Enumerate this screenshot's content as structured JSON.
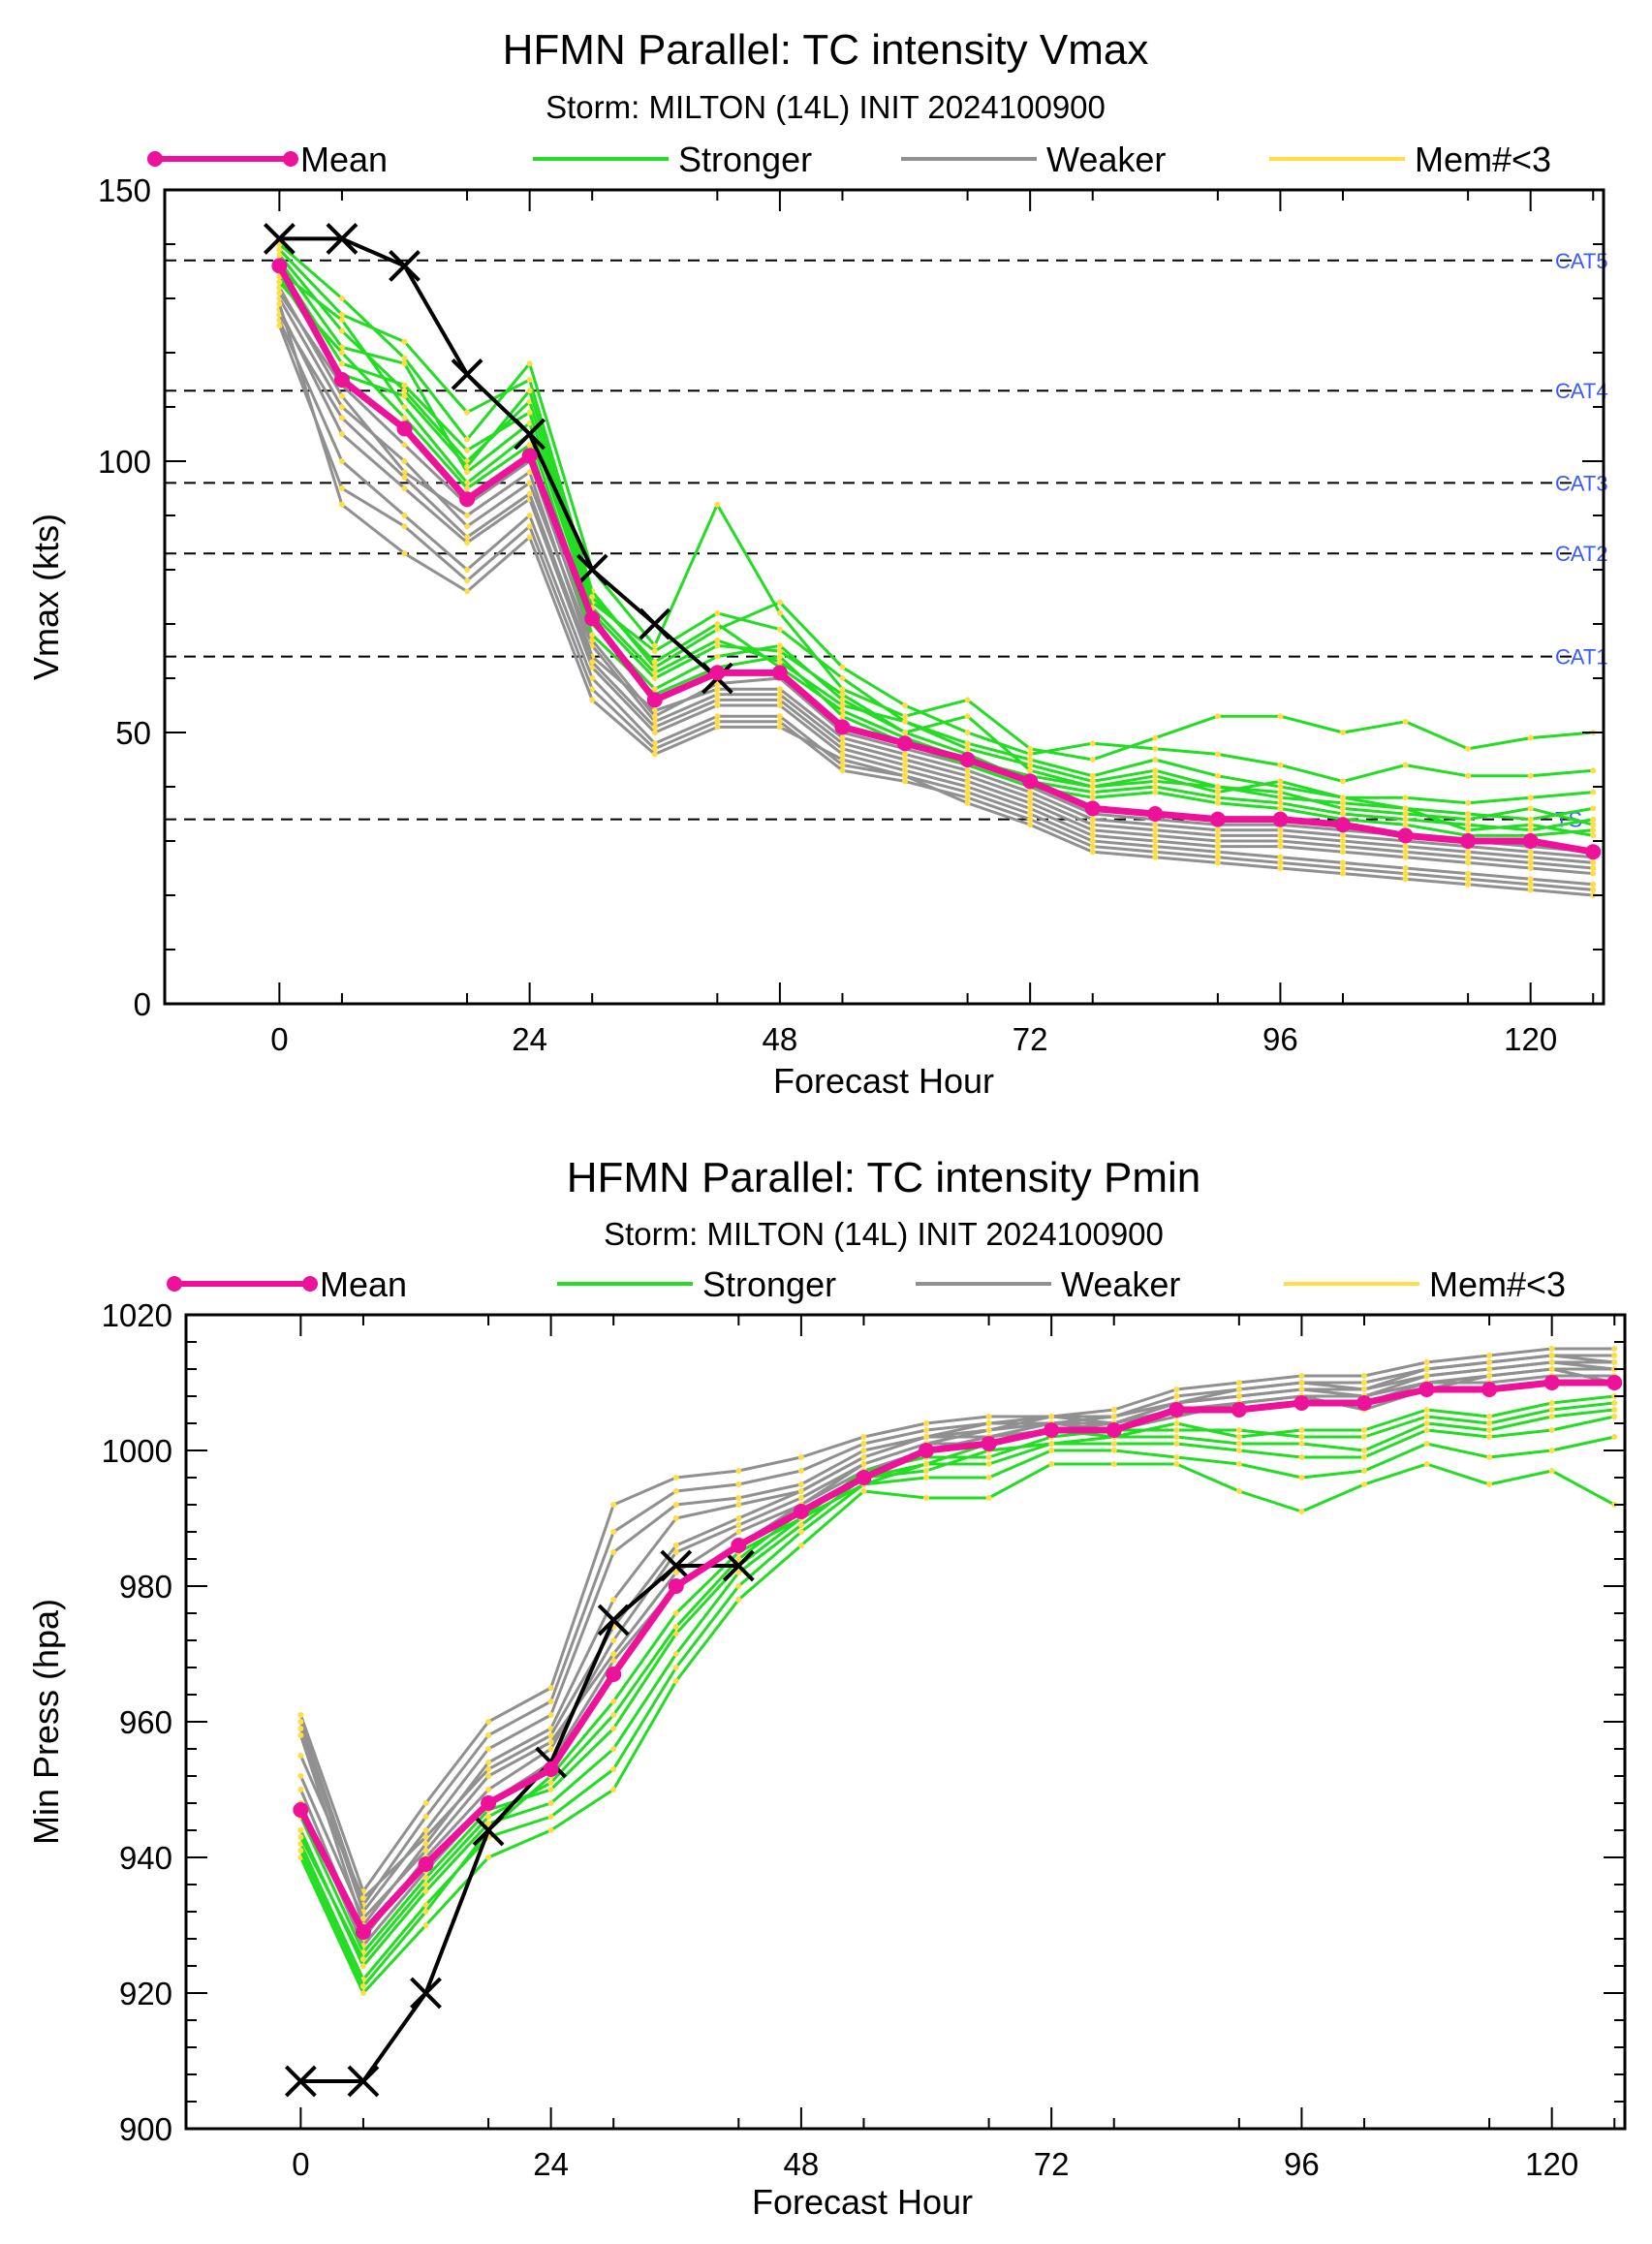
{
  "chart_data": [
    {
      "type": "line",
      "title": "HFMN Parallel: TC intensity Vmax",
      "subtitle": "Storm: MILTON (14L) INIT 2024100900",
      "xlabel": "Forecast Hour",
      "ylabel": "Vmax (kts)",
      "xlim": [
        -11,
        127
      ],
      "ylim": [
        0,
        150
      ],
      "xticks": [
        0,
        24,
        48,
        72,
        96,
        120
      ],
      "yticks": [
        0,
        50,
        100,
        150
      ],
      "grid": false,
      "legend_position": "top",
      "legend": [
        {
          "label": "Mean",
          "color": "#ee1199",
          "marker": "dot"
        },
        {
          "label": "Stronger",
          "color": "#22dd22"
        },
        {
          "label": "Weaker",
          "color": "#909090"
        },
        {
          "label": "Mem#<3",
          "color": "#ffdd44"
        }
      ],
      "thresholds": [
        {
          "label": "CAT5",
          "value": 137
        },
        {
          "label": "CAT4",
          "value": 113
        },
        {
          "label": "CAT3",
          "value": 96
        },
        {
          "label": "CAT2",
          "value": 83
        },
        {
          "label": "CAT1",
          "value": 64
        },
        {
          "label": "TS",
          "value": 34
        }
      ],
      "x": [
        0,
        6,
        12,
        18,
        24,
        30,
        36,
        42,
        48,
        54,
        60,
        66,
        72,
        78,
        84,
        90,
        96,
        102,
        108,
        114,
        120,
        126
      ],
      "series": [
        {
          "name": "Mean",
          "color": "#ee1199",
          "values": [
            136,
            115,
            106,
            93,
            101,
            71,
            56,
            61,
            61,
            51,
            48,
            45,
            41,
            36,
            35,
            34,
            34,
            33,
            31,
            30,
            30,
            28
          ]
        },
        {
          "name": "Observed",
          "color": "#000000",
          "values": [
            141,
            141,
            136,
            116,
            105,
            80,
            70,
            60,
            null,
            null,
            null,
            null,
            null,
            null,
            null,
            null,
            null,
            null,
            null,
            null,
            null,
            null
          ]
        }
      ],
      "ensemble": {
        "stronger": [
          [
            140,
            130,
            119,
            104,
            118,
            80,
            66,
            92,
            72,
            58,
            53,
            56,
            47,
            45,
            49,
            53,
            53,
            50,
            52,
            47,
            49,
            50
          ],
          [
            139,
            127,
            122,
            109,
            115,
            76,
            62,
            69,
            74,
            62,
            55,
            50,
            46,
            48,
            47,
            46,
            44,
            41,
            44,
            42,
            42,
            43
          ],
          [
            138,
            124,
            113,
            100,
            111,
            74,
            65,
            72,
            69,
            60,
            52,
            48,
            45,
            42,
            45,
            42,
            40,
            38,
            38,
            37,
            38,
            39
          ],
          [
            137,
            121,
            118,
            98,
            107,
            72,
            60,
            66,
            65,
            57,
            50,
            53,
            43,
            40,
            41,
            40,
            38,
            37,
            36,
            35,
            34,
            36
          ],
          [
            136,
            118,
            114,
            102,
            109,
            73,
            61,
            67,
            63,
            55,
            52,
            47,
            44,
            41,
            43,
            40,
            39,
            36,
            35,
            34,
            36,
            33
          ],
          [
            135,
            126,
            110,
            96,
            105,
            70,
            58,
            64,
            66,
            56,
            50,
            46,
            41,
            39,
            40,
            38,
            37,
            35,
            34,
            33,
            32,
            34
          ],
          [
            134,
            116,
            112,
            99,
            113,
            75,
            63,
            70,
            62,
            54,
            49,
            45,
            42,
            40,
            42,
            39,
            41,
            38,
            36,
            32,
            33,
            31
          ],
          [
            133,
            120,
            108,
            95,
            103,
            68,
            57,
            62,
            64,
            53,
            48,
            44,
            40,
            38,
            39,
            37,
            36,
            34,
            33,
            31,
            31,
            32
          ]
        ],
        "weaker": [
          [
            130,
            110,
            100,
            88,
            96,
            66,
            52,
            57,
            57,
            48,
            45,
            42,
            38,
            33,
            32,
            31,
            31,
            30,
            29,
            28,
            27,
            26
          ],
          [
            128,
            105,
            95,
            85,
            93,
            62,
            50,
            55,
            55,
            46,
            43,
            40,
            36,
            31,
            30,
            29,
            29,
            28,
            27,
            26,
            25,
            24
          ],
          [
            126,
            100,
            90,
            80,
            90,
            60,
            48,
            53,
            53,
            44,
            42,
            39,
            35,
            30,
            29,
            28,
            27,
            26,
            25,
            24,
            23,
            22
          ],
          [
            132,
            112,
            98,
            90,
            98,
            64,
            54,
            58,
            58,
            49,
            46,
            43,
            39,
            34,
            33,
            32,
            32,
            31,
            30,
            29,
            28,
            27
          ],
          [
            127,
            108,
            97,
            86,
            94,
            63,
            51,
            56,
            56,
            47,
            44,
            41,
            37,
            32,
            31,
            30,
            30,
            29,
            28,
            27,
            26,
            25
          ],
          [
            125,
            95,
            88,
            78,
            88,
            58,
            47,
            52,
            52,
            43,
            41,
            38,
            34,
            29,
            28,
            27,
            26,
            25,
            24,
            23,
            22,
            21
          ],
          [
            129,
            92,
            83,
            76,
            86,
            56,
            46,
            51,
            51,
            45,
            42,
            37,
            33,
            28,
            27,
            26,
            25,
            24,
            23,
            22,
            21,
            20
          ],
          [
            131,
            114,
            103,
            92,
            100,
            67,
            53,
            59,
            60,
            50,
            47,
            44,
            40,
            35,
            34,
            33,
            33,
            32,
            31,
            30,
            29,
            28
          ]
        ]
      }
    },
    {
      "type": "line",
      "title": "HFMN Parallel: TC intensity Pmin",
      "subtitle": "Storm: MILTON (14L) INIT 2024100900",
      "xlabel": "Forecast Hour",
      "ylabel": "Min Press (hpa)",
      "xlim": [
        -11,
        127
      ],
      "ylim": [
        900,
        1020
      ],
      "xticks": [
        0,
        24,
        48,
        72,
        96,
        120
      ],
      "yticks": [
        900,
        920,
        940,
        960,
        980,
        1000,
        1020
      ],
      "grid": false,
      "legend_position": "top",
      "legend": [
        {
          "label": "Mean",
          "color": "#ee1199",
          "marker": "dot"
        },
        {
          "label": "Stronger",
          "color": "#22dd22"
        },
        {
          "label": "Weaker",
          "color": "#909090"
        },
        {
          "label": "Mem#<3",
          "color": "#ffdd44"
        }
      ],
      "x": [
        0,
        6,
        12,
        18,
        24,
        30,
        36,
        42,
        48,
        54,
        60,
        66,
        72,
        78,
        84,
        90,
        96,
        102,
        108,
        114,
        120,
        126
      ],
      "series": [
        {
          "name": "Mean",
          "color": "#ee1199",
          "values": [
            947,
            929,
            939,
            948,
            953,
            967,
            980,
            986,
            991,
            996,
            1000,
            1001,
            1003,
            1003,
            1006,
            1006,
            1007,
            1007,
            1009,
            1009,
            1010,
            1010
          ]
        },
        {
          "name": "Observed",
          "color": "#000000",
          "values": [
            907,
            907,
            920,
            944,
            954,
            975,
            983,
            983,
            null,
            null,
            null,
            null,
            null,
            null,
            null,
            null,
            null,
            null,
            null,
            null,
            null,
            null
          ]
        }
      ],
      "ensemble": {
        "stronger": [
          [
            940,
            920,
            930,
            940,
            944,
            950,
            966,
            978,
            986,
            994,
            993,
            993,
            998,
            998,
            998,
            994,
            991,
            995,
            998,
            995,
            997,
            992
          ],
          [
            942,
            922,
            933,
            943,
            946,
            953,
            968,
            980,
            988,
            995,
            996,
            996,
            1000,
            1000,
            999,
            998,
            996,
            997,
            1001,
            999,
            1000,
            1002
          ],
          [
            944,
            924,
            935,
            945,
            948,
            956,
            970,
            982,
            989,
            996,
            998,
            998,
            1001,
            1001,
            1001,
            1000,
            999,
            999,
            1003,
            1002,
            1003,
            1005
          ],
          [
            946,
            926,
            937,
            947,
            950,
            959,
            973,
            983,
            990,
            997,
            999,
            999,
            1002,
            1003,
            1003,
            1003,
            1002,
            1002,
            1005,
            1004,
            1006,
            1007
          ],
          [
            943,
            925,
            936,
            946,
            951,
            961,
            974,
            984,
            991,
            996,
            997,
            1000,
            1001,
            1002,
            1002,
            1001,
            1001,
            1000,
            1004,
            1003,
            1005,
            1006
          ],
          [
            941,
            921,
            932,
            944,
            952,
            963,
            976,
            985,
            990,
            995,
            998,
            1001,
            1003,
            1002,
            1004,
            1002,
            1003,
            1003,
            1006,
            1005,
            1007,
            1008
          ]
        ],
        "weaker": [
          [
            961,
            935,
            948,
            960,
            965,
            992,
            996,
            997,
            999,
            1002,
            1004,
            1005,
            1005,
            1006,
            1009,
            1010,
            1011,
            1011,
            1013,
            1014,
            1015,
            1015
          ],
          [
            960,
            933,
            946,
            958,
            963,
            988,
            994,
            995,
            997,
            1001,
            1003,
            1004,
            1004,
            1005,
            1008,
            1009,
            1010,
            1010,
            1012,
            1013,
            1014,
            1014
          ],
          [
            959,
            932,
            944,
            956,
            961,
            985,
            992,
            993,
            995,
            1000,
            1002,
            1003,
            1004,
            1004,
            1007,
            1008,
            1009,
            1009,
            1011,
            1012,
            1013,
            1013
          ],
          [
            958,
            930,
            942,
            954,
            959,
            978,
            990,
            992,
            994,
            999,
            1002,
            1002,
            1003,
            1004,
            1006,
            1007,
            1008,
            1008,
            1010,
            1011,
            1012,
            1012
          ],
          [
            950,
            928,
            940,
            950,
            956,
            972,
            985,
            989,
            993,
            998,
            1001,
            1001,
            1003,
            1003,
            1006,
            1006,
            1007,
            1007,
            1010,
            1010,
            1011,
            1011
          ],
          [
            948,
            927,
            938,
            948,
            954,
            969,
            980,
            986,
            992,
            997,
            1000,
            1002,
            1004,
            1003,
            1005,
            1007,
            1008,
            1006,
            1009,
            1011,
            1012,
            1010
          ],
          [
            952,
            931,
            941,
            952,
            957,
            970,
            982,
            988,
            992,
            998,
            1001,
            1003,
            1005,
            1004,
            1007,
            1008,
            1009,
            1008,
            1011,
            1012,
            1013,
            1012
          ],
          [
            955,
            934,
            943,
            953,
            958,
            974,
            986,
            990,
            994,
            999,
            1002,
            1004,
            1005,
            1005,
            1007,
            1009,
            1010,
            1009,
            1012,
            1013,
            1014,
            1013
          ]
        ]
      }
    }
  ]
}
